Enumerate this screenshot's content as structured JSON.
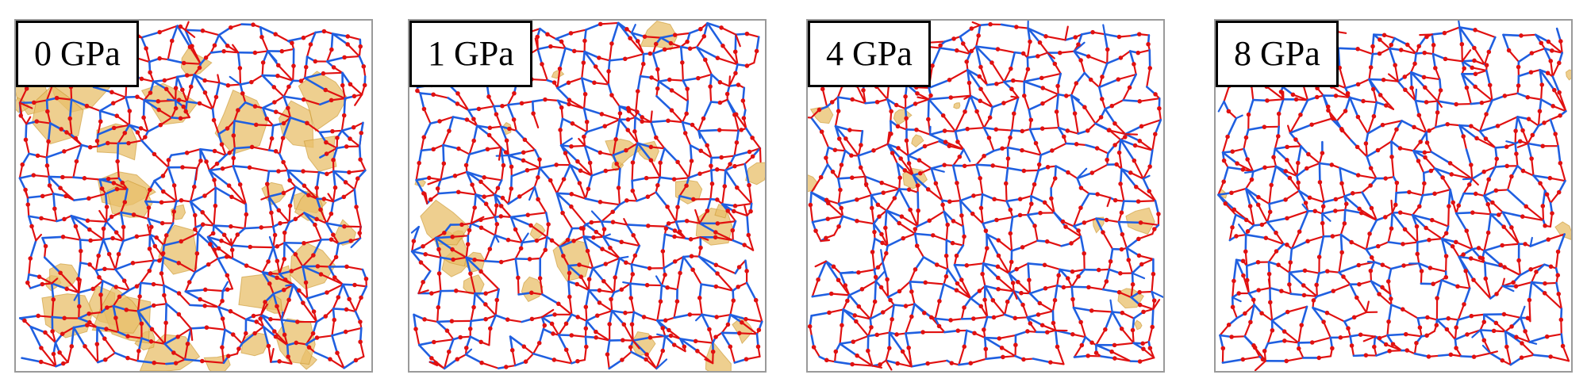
{
  "panels": [
    {
      "label": "0 GPa",
      "pressure_gpa": 0,
      "void_density": 0.9
    },
    {
      "label": "1 GPa",
      "pressure_gpa": 1,
      "void_density": 0.6
    },
    {
      "label": "4 GPa",
      "pressure_gpa": 4,
      "void_density": 0.25
    },
    {
      "label": "8 GPa",
      "pressure_gpa": 8,
      "void_density": 0.08
    }
  ],
  "colors": {
    "bond_blue": "#1f5fe0",
    "atom_red": "#e01010",
    "void_gold": "#e8bf6a",
    "void_edge": "#c9962e",
    "frame": "#9a9a9a"
  }
}
